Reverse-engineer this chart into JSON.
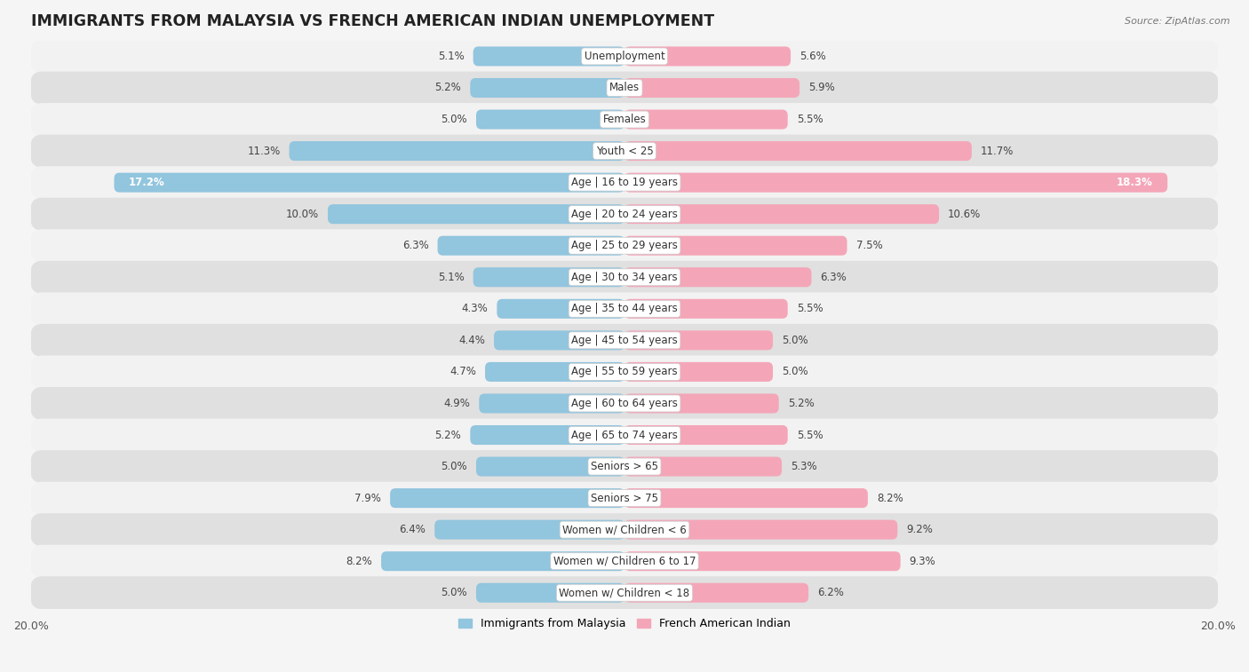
{
  "title": "IMMIGRANTS FROM MALAYSIA VS FRENCH AMERICAN INDIAN UNEMPLOYMENT",
  "source": "Source: ZipAtlas.com",
  "categories": [
    "Unemployment",
    "Males",
    "Females",
    "Youth < 25",
    "Age | 16 to 19 years",
    "Age | 20 to 24 years",
    "Age | 25 to 29 years",
    "Age | 30 to 34 years",
    "Age | 35 to 44 years",
    "Age | 45 to 54 years",
    "Age | 55 to 59 years",
    "Age | 60 to 64 years",
    "Age | 65 to 74 years",
    "Seniors > 65",
    "Seniors > 75",
    "Women w/ Children < 6",
    "Women w/ Children 6 to 17",
    "Women w/ Children < 18"
  ],
  "malaysia_values": [
    5.1,
    5.2,
    5.0,
    11.3,
    17.2,
    10.0,
    6.3,
    5.1,
    4.3,
    4.4,
    4.7,
    4.9,
    5.2,
    5.0,
    7.9,
    6.4,
    8.2,
    5.0
  ],
  "french_values": [
    5.6,
    5.9,
    5.5,
    11.7,
    18.3,
    10.6,
    7.5,
    6.3,
    5.5,
    5.0,
    5.0,
    5.2,
    5.5,
    5.3,
    8.2,
    9.2,
    9.3,
    6.2
  ],
  "malaysia_color": "#92c5de",
  "french_color": "#f4a6b8",
  "xlim": 20.0,
  "row_colors_even": "#f2f2f2",
  "row_colors_odd": "#e0e0e0",
  "bar_height": 0.62,
  "title_fontsize": 12.5,
  "label_fontsize": 8.5,
  "value_fontsize": 8.5,
  "legend_label1": "Immigrants from Malaysia",
  "legend_label2": "French American Indian"
}
